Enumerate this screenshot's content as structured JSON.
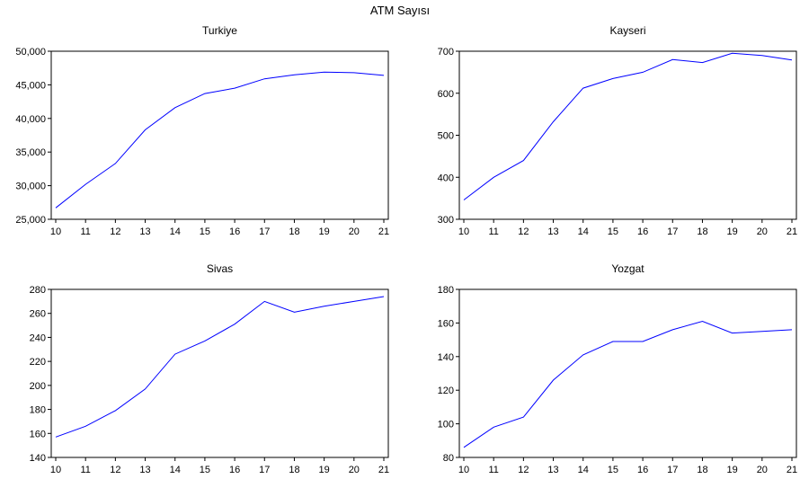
{
  "figure": {
    "title": "ATM Sayısı"
  },
  "style": {
    "line_color": "#0000ff",
    "axis_color": "#000000",
    "background": "#ffffff"
  },
  "chart_data": [
    {
      "type": "line",
      "title": "Turkiye",
      "xlabel": "",
      "ylabel": "",
      "x": [
        "10",
        "11",
        "12",
        "13",
        "14",
        "15",
        "16",
        "17",
        "18",
        "19",
        "20",
        "21"
      ],
      "series": [
        {
          "values": [
            26700,
            30200,
            33300,
            38300,
            41600,
            43700,
            44500,
            45900,
            46500,
            46900,
            46800,
            46400
          ]
        }
      ],
      "ylim": [
        25000,
        50000
      ],
      "yticks": [
        25000,
        30000,
        35000,
        40000,
        45000,
        50000
      ],
      "ytick_labels": [
        "25,000",
        "30,000",
        "35,000",
        "40,000",
        "45,000",
        "50,000"
      ],
      "grid": false,
      "legend": "none"
    },
    {
      "type": "line",
      "title": "Kayseri",
      "xlabel": "",
      "ylabel": "",
      "x": [
        "10",
        "11",
        "12",
        "13",
        "14",
        "15",
        "16",
        "17",
        "18",
        "19",
        "20",
        "21"
      ],
      "series": [
        {
          "values": [
            346,
            400,
            440,
            532,
            612,
            635,
            650,
            680,
            673,
            695,
            690,
            679
          ]
        }
      ],
      "ylim": [
        300,
        700
      ],
      "yticks": [
        300,
        400,
        500,
        600,
        700
      ],
      "ytick_labels": [
        "300",
        "400",
        "500",
        "600",
        "700"
      ],
      "grid": false,
      "legend": "none"
    },
    {
      "type": "line",
      "title": "Sivas",
      "xlabel": "",
      "ylabel": "",
      "x": [
        "10",
        "11",
        "12",
        "13",
        "14",
        "15",
        "16",
        "17",
        "18",
        "19",
        "20",
        "21"
      ],
      "series": [
        {
          "values": [
            157,
            166,
            179,
            197,
            226,
            237,
            251,
            270,
            261,
            266,
            270,
            274
          ]
        }
      ],
      "ylim": [
        140,
        280
      ],
      "yticks": [
        140,
        160,
        180,
        200,
        220,
        240,
        260,
        280
      ],
      "ytick_labels": [
        "140",
        "160",
        "180",
        "200",
        "220",
        "240",
        "260",
        "280"
      ],
      "grid": false,
      "legend": "none"
    },
    {
      "type": "line",
      "title": "Yozgat",
      "xlabel": "",
      "ylabel": "",
      "x": [
        "10",
        "11",
        "12",
        "13",
        "14",
        "15",
        "16",
        "17",
        "18",
        "19",
        "20",
        "21"
      ],
      "series": [
        {
          "values": [
            86,
            98,
            104,
            126,
            141,
            149,
            149,
            156,
            161,
            154,
            155,
            156
          ]
        }
      ],
      "ylim": [
        80,
        180
      ],
      "yticks": [
        80,
        100,
        120,
        140,
        160,
        180
      ],
      "ytick_labels": [
        "80",
        "100",
        "120",
        "140",
        "160",
        "180"
      ],
      "grid": false,
      "legend": "none"
    }
  ]
}
